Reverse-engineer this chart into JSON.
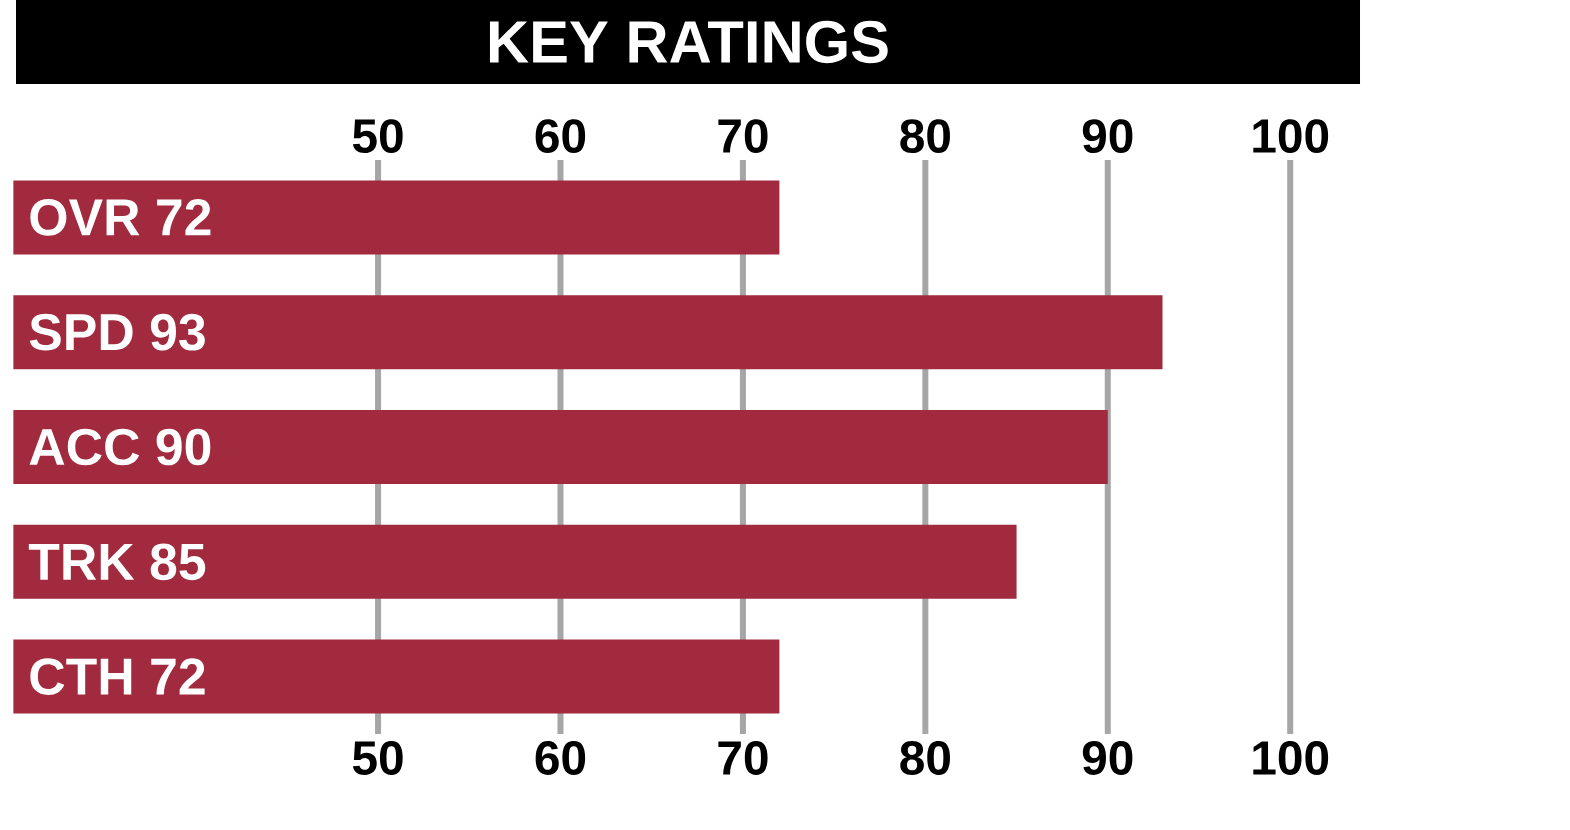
{
  "chart_data": {
    "type": "bar",
    "orientation": "horizontal",
    "title": "KEY RATINGS",
    "categories": [
      "OVR 72",
      "SPD 93",
      "ACC 90",
      "TRK 85",
      "CTH 72"
    ],
    "values": [
      72,
      93,
      90,
      85,
      72
    ],
    "color": "#a12a3e",
    "xlim": [
      30,
      100
    ],
    "xticks": [
      50,
      60,
      70,
      80,
      90,
      100
    ],
    "x2lim": [
      30,
      100
    ],
    "x2ticks": [
      50,
      60,
      70,
      80,
      90,
      100
    ],
    "grid": "x"
  }
}
